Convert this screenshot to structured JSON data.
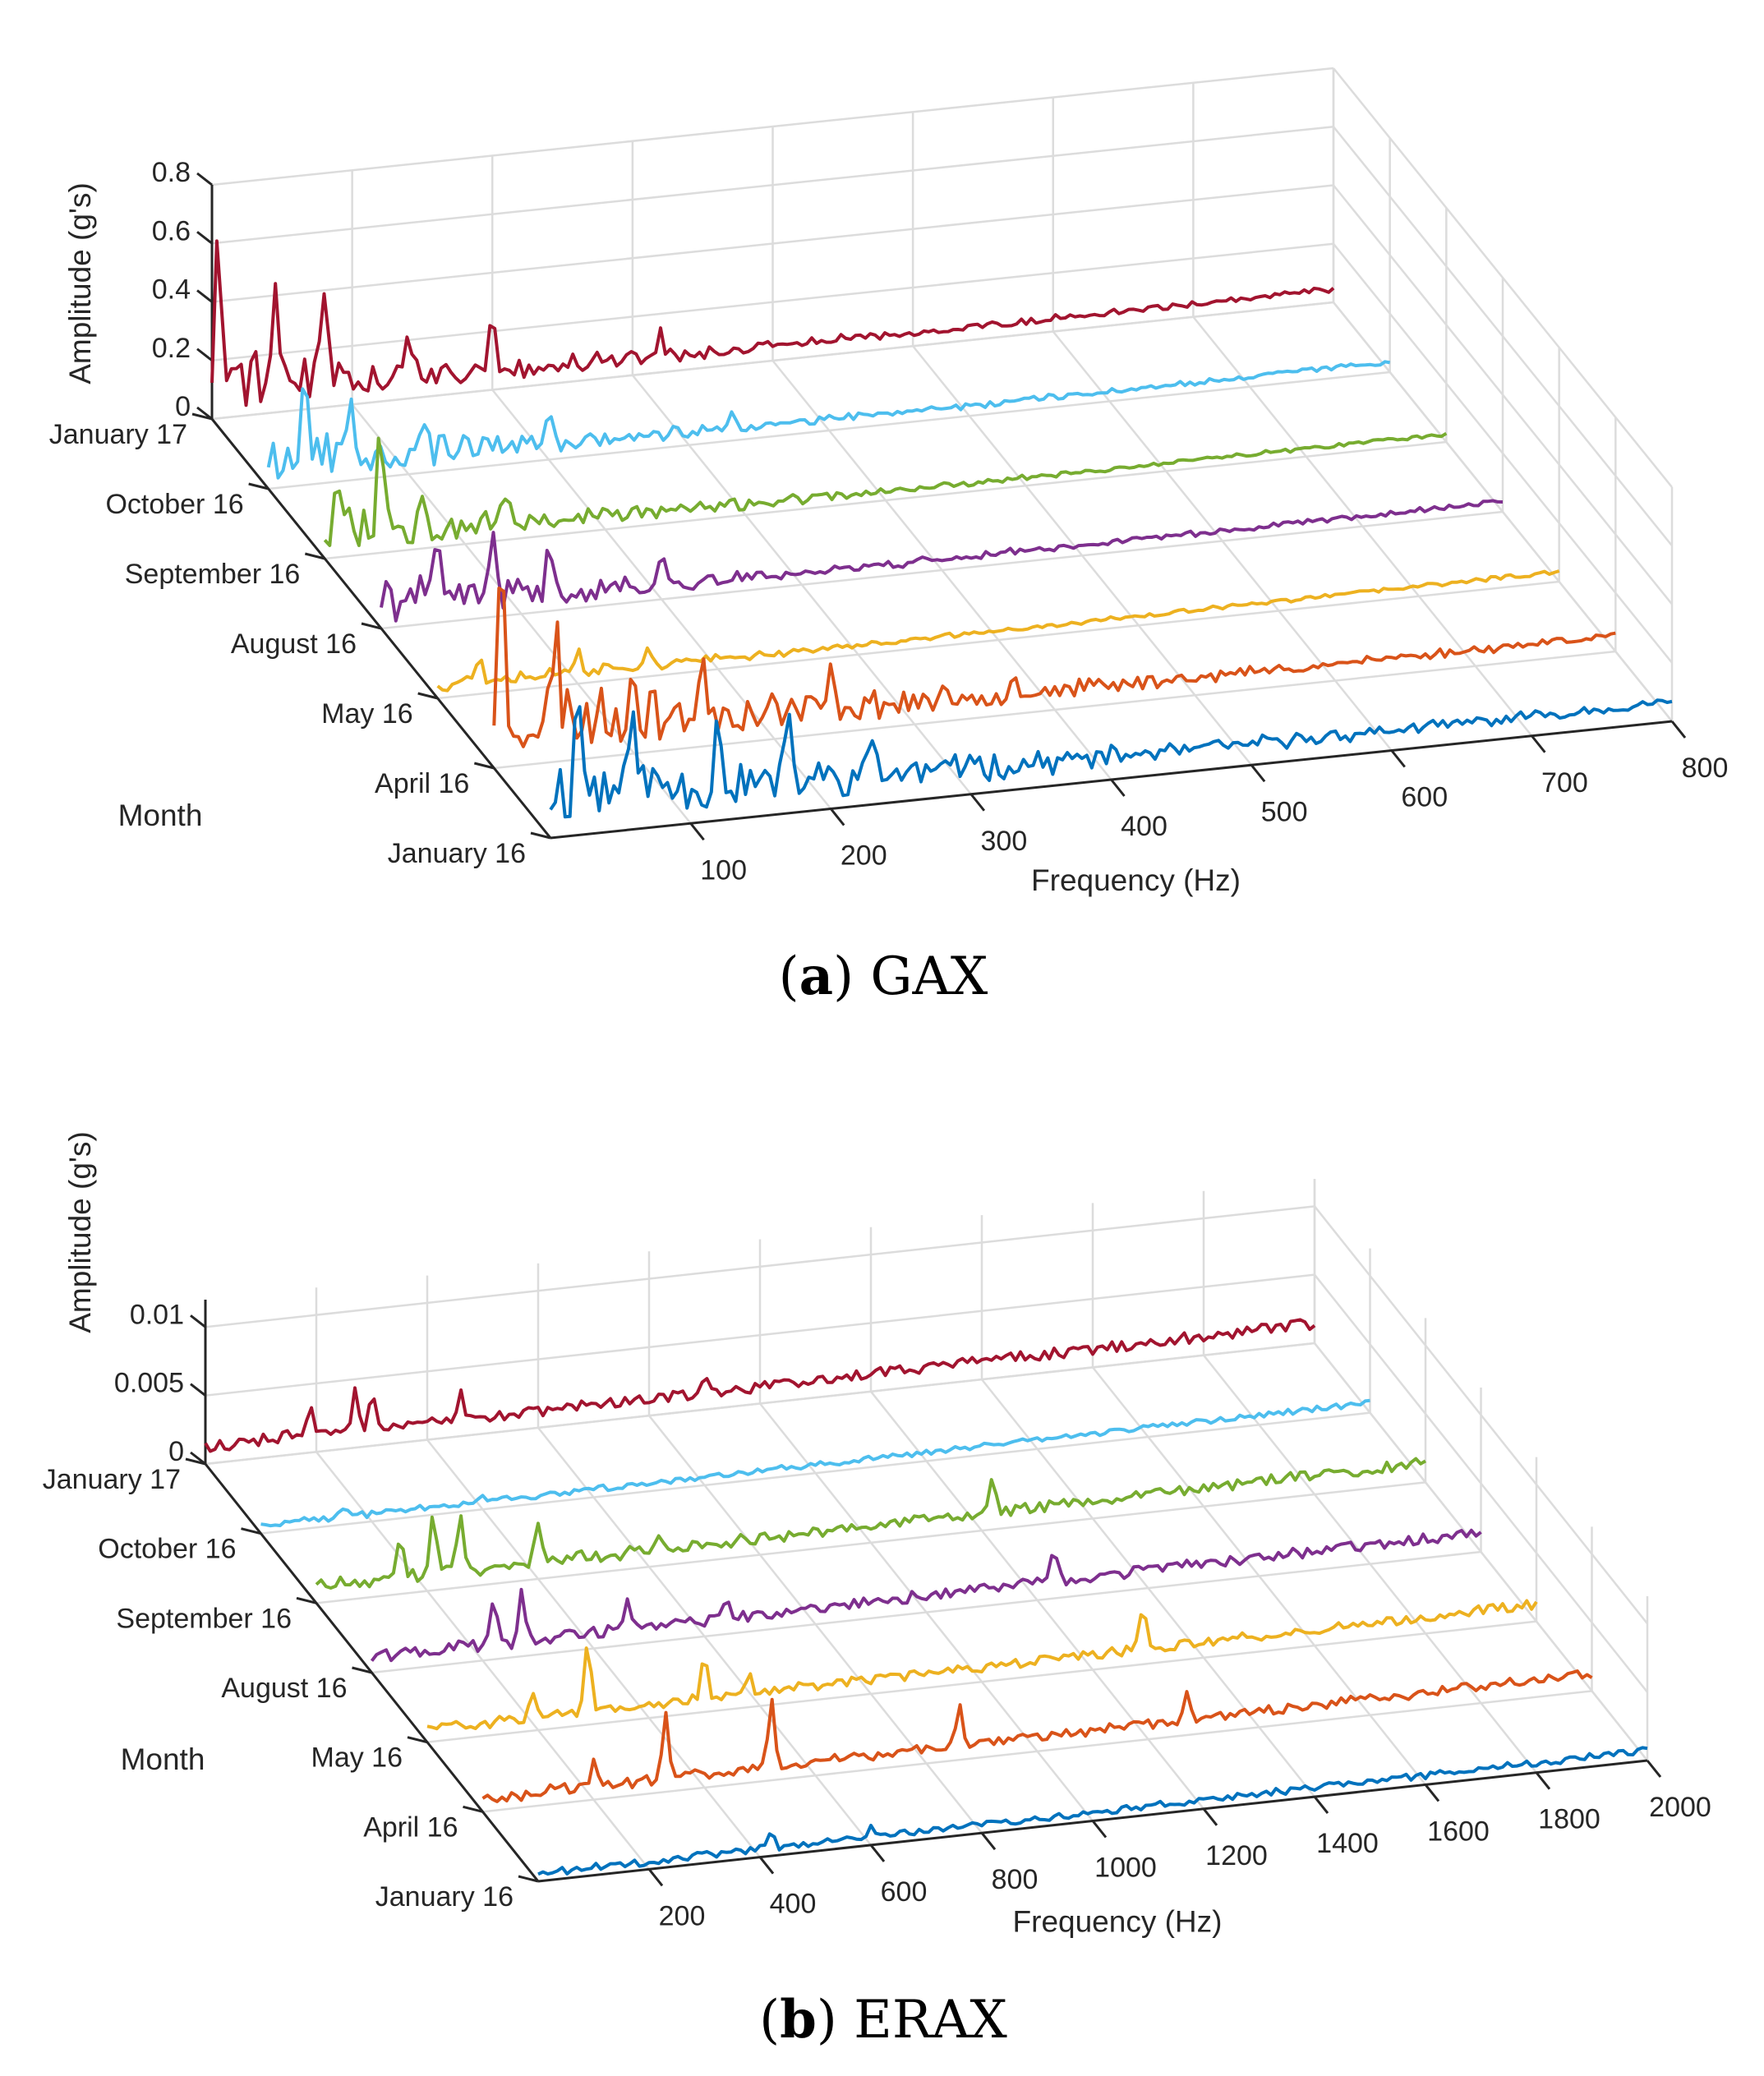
{
  "chart_data": [
    {
      "type": "line",
      "variant": "3d-waterfall",
      "caption_letter": "a",
      "caption_text": "GAX",
      "xlabel": "Frequency (Hz)",
      "ylabel": "Month",
      "zlabel": "Amplitude (g's)",
      "xlim": [
        0,
        800
      ],
      "zlim": [
        0,
        0.8
      ],
      "x_ticks": [
        "100",
        "200",
        "300",
        "400",
        "500",
        "600",
        "700",
        "800"
      ],
      "x_tick_values": [
        100,
        200,
        300,
        400,
        500,
        600,
        700,
        800
      ],
      "z_ticks": [
        "0",
        "0.2",
        "0.4",
        "0.6",
        "0.8"
      ],
      "z_tick_values": [
        0,
        0.2,
        0.4,
        0.6,
        0.8
      ],
      "grid": true,
      "series": [
        {
          "name": "January 16",
          "color": "#0072BD",
          "seed": 11,
          "low_amp": 0.26,
          "base": 0.035,
          "noise": 0.025,
          "decay_hz": 260,
          "peaks": [
            [
              20,
              0.34
            ],
            [
              60,
              0.3
            ],
            [
              120,
              0.24
            ],
            [
              170,
              0.18
            ],
            [
              230,
              0.14
            ],
            [
              300,
              0.08
            ]
          ]
        },
        {
          "name": "April 16",
          "color": "#D95319",
          "seed": 23,
          "low_amp": 0.3,
          "base": 0.03,
          "noise": 0.022,
          "decay_hz": 220,
          "peaks": [
            [
              5,
              0.52
            ],
            [
              45,
              0.26
            ],
            [
              100,
              0.2
            ],
            [
              150,
              0.16
            ],
            [
              240,
              0.1
            ],
            [
              370,
              0.07
            ]
          ]
        },
        {
          "name": "May 16",
          "color": "#EDB120",
          "seed": 37,
          "low_amp": 0.07,
          "base": 0.02,
          "noise": 0.014,
          "decay_hz": 150,
          "peaks": [
            [
              30,
              0.08
            ],
            [
              100,
              0.09
            ],
            [
              150,
              0.06
            ]
          ]
        },
        {
          "name": "August 16",
          "color": "#7E2F8E",
          "seed": 41,
          "low_amp": 0.16,
          "base": 0.02,
          "noise": 0.016,
          "decay_hz": 180,
          "peaks": [
            [
              40,
              0.16
            ],
            [
              80,
              0.22
            ],
            [
              120,
              0.14
            ],
            [
              200,
              0.08
            ]
          ]
        },
        {
          "name": "September 16",
          "color": "#77AC30",
          "seed": 53,
          "low_amp": 0.2,
          "base": 0.015,
          "noise": 0.014,
          "decay_hz": 160,
          "peaks": [
            [
              10,
              0.18
            ],
            [
              40,
              0.32
            ],
            [
              70,
              0.16
            ],
            [
              130,
              0.08
            ]
          ]
        },
        {
          "name": "October 16",
          "color": "#4DBEEE",
          "seed": 67,
          "low_amp": 0.2,
          "base": 0.02,
          "noise": 0.016,
          "decay_hz": 170,
          "peaks": [
            [
              25,
              0.26
            ],
            [
              60,
              0.18
            ],
            [
              110,
              0.14
            ],
            [
              200,
              0.08
            ],
            [
              330,
              0.06
            ]
          ]
        },
        {
          "name": "January 17",
          "color": "#A2142F",
          "seed": 79,
          "low_amp": 0.22,
          "base": 0.025,
          "noise": 0.018,
          "decay_hz": 190,
          "peaks": [
            [
              5,
              0.48
            ],
            [
              45,
              0.36
            ],
            [
              80,
              0.3
            ],
            [
              140,
              0.18
            ],
            [
              200,
              0.16
            ],
            [
              320,
              0.1
            ]
          ]
        }
      ]
    },
    {
      "type": "line",
      "variant": "3d-waterfall",
      "caption_letter": "b",
      "caption_text": "ERAX",
      "xlabel": "Frequency (Hz)",
      "ylabel": "Month",
      "zlabel": "Amplitude (g's)",
      "xlim": [
        0,
        2000
      ],
      "zlim": [
        0,
        0.012
      ],
      "x_ticks": [
        "200",
        "400",
        "600",
        "800",
        "1000",
        "1200",
        "1400",
        "1600",
        "1800",
        "2000"
      ],
      "x_tick_values": [
        200,
        400,
        600,
        800,
        1000,
        1200,
        1400,
        1600,
        1800,
        2000
      ],
      "z_ticks": [
        "0",
        "0.005",
        "0.01"
      ],
      "z_tick_values": [
        0,
        0.005,
        0.01
      ],
      "grid": true,
      "series": [
        {
          "name": "January 16",
          "color": "#0072BD",
          "seed": 101,
          "low_amp": 0.0002,
          "base": 0.0004,
          "noise": 0.0005,
          "decay_hz": 400,
          "peaks": [
            [
              420,
              0.0012
            ],
            [
              600,
              0.0009
            ]
          ]
        },
        {
          "name": "April 16",
          "color": "#D95319",
          "seed": 113,
          "low_amp": 0.0004,
          "base": 0.0007,
          "noise": 0.0007,
          "decay_hz": 400,
          "peaks": [
            [
              330,
              0.0045
            ],
            [
              520,
              0.0052
            ],
            [
              860,
              0.003
            ],
            [
              1270,
              0.002
            ],
            [
              200,
              0.002
            ]
          ]
        },
        {
          "name": "May 16",
          "color": "#EDB120",
          "seed": 127,
          "low_amp": 0.0004,
          "base": 0.0007,
          "noise": 0.0007,
          "decay_hz": 400,
          "peaks": [
            [
              290,
              0.005
            ],
            [
              500,
              0.0032
            ],
            [
              1290,
              0.0032
            ],
            [
              190,
              0.002
            ],
            [
              580,
              0.0018
            ]
          ]
        },
        {
          "name": "August 16",
          "color": "#7E2F8E",
          "seed": 131,
          "low_amp": 0.0006,
          "base": 0.0008,
          "noise": 0.0008,
          "decay_hz": 400,
          "peaks": [
            [
              270,
              0.0036
            ],
            [
              220,
              0.003
            ],
            [
              460,
              0.0026
            ],
            [
              1230,
              0.0022
            ],
            [
              640,
              0.0016
            ]
          ]
        },
        {
          "name": "September 16",
          "color": "#77AC30",
          "seed": 137,
          "low_amp": 0.0008,
          "base": 0.0008,
          "noise": 0.0008,
          "decay_hz": 400,
          "peaks": [
            [
              210,
              0.0048
            ],
            [
              260,
              0.004
            ],
            [
              150,
              0.003
            ],
            [
              400,
              0.0028
            ],
            [
              1220,
              0.0025
            ],
            [
              620,
              0.0014
            ]
          ]
        },
        {
          "name": "October 16",
          "color": "#4DBEEE",
          "seed": 149,
          "low_amp": 0.0003,
          "base": 0.0004,
          "noise": 0.0004,
          "decay_hz": 400,
          "peaks": [
            [
              150,
              0.0008
            ],
            [
              400,
              0.0006
            ]
          ]
        },
        {
          "name": "January 17",
          "color": "#A2142F",
          "seed": 151,
          "low_amp": 0.0006,
          "base": 0.0008,
          "noise": 0.0008,
          "decay_hz": 400,
          "peaks": [
            [
              190,
              0.0026
            ],
            [
              270,
              0.003
            ],
            [
              300,
              0.0028
            ],
            [
              460,
              0.0018
            ],
            [
              900,
              0.0012
            ]
          ]
        }
      ]
    }
  ]
}
